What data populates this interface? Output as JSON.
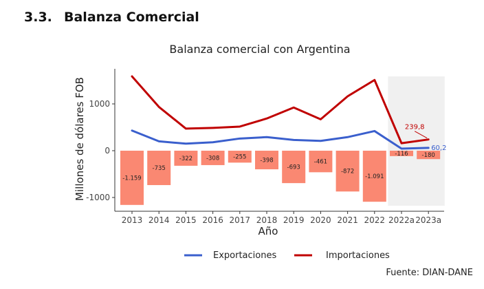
{
  "section": {
    "number": "3.3.",
    "title": "Balanza Comercial"
  },
  "source": "Fuente: DIAN-DANE",
  "colors": {
    "exportaciones": "#3a5fcd",
    "importaciones": "#c00000",
    "balanza": "#fa8872",
    "highlight": "#f0f0f0"
  },
  "chart_data": {
    "type": "line",
    "title": "Balanza comercial con Argentina",
    "xlabel": "Año",
    "ylabel": "Millones de dólares FOB",
    "categories": [
      "2013",
      "2014",
      "2015",
      "2016",
      "2017",
      "2018",
      "2019",
      "2020",
      "2021",
      "2022",
      "2022a",
      "2023a"
    ],
    "ylim": [
      -1150,
      1600
    ],
    "yticks": [
      -1000,
      0,
      1000
    ],
    "ytick_labels": [
      "-1000",
      "0",
      "1000"
    ],
    "highlight_categories": [
      "2022a",
      "2023a"
    ],
    "series": [
      {
        "name": "Exportaciones",
        "type": "line",
        "values": [
          430,
          200,
          150,
          180,
          260,
          290,
          230,
          210,
          290,
          420,
          44,
          60.2
        ],
        "end_label": "60,2"
      },
      {
        "name": "Importaciones",
        "type": "line",
        "values": [
          1589,
          935,
          472,
          488,
          515,
          688,
          923,
          671,
          1162,
          1511,
          160,
          239.8
        ],
        "end_label": "239,8"
      },
      {
        "name": "Balanza",
        "type": "bar",
        "values": [
          -1159,
          -735,
          -322,
          -308,
          -255,
          -398,
          -693,
          -461,
          -872,
          -1091,
          -116,
          -180
        ],
        "labels": [
          "-1.159",
          "-735",
          "-322",
          "-308",
          "-255",
          "-398",
          "-693",
          "-461",
          "-872",
          "-1.091",
          "-116",
          "-180"
        ]
      }
    ],
    "legend": {
      "placement": "bottom",
      "entries": [
        "Exportaciones",
        "Importaciones"
      ]
    },
    "grid": false
  }
}
